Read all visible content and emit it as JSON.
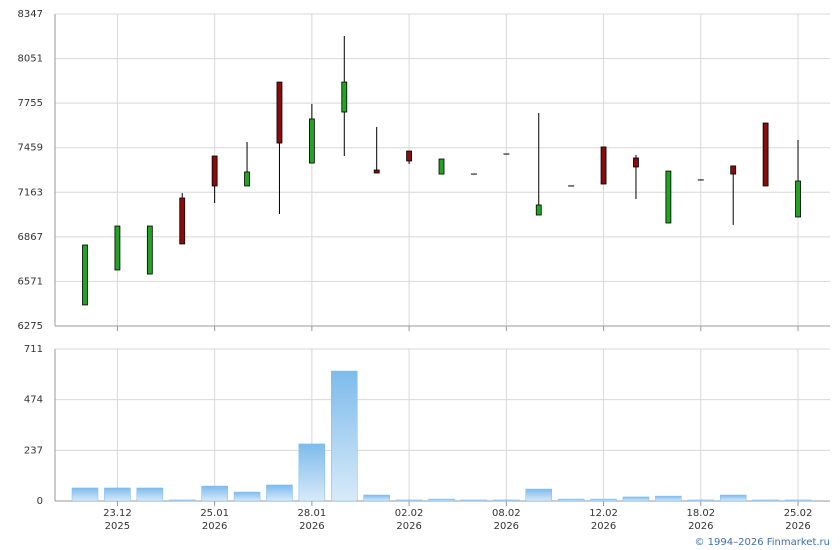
{
  "chart_data": [
    {
      "type": "candlestick",
      "open": [
        6415,
        6647,
        6620,
        7125,
        7404,
        7205,
        7895,
        7357,
        7696,
        7311,
        7437,
        7284,
        7284,
        7417,
        7012,
        7205,
        7464,
        7391,
        6959,
        7245,
        7338,
        7623,
        6999
      ],
      "high": [
        6813,
        6939,
        6939,
        7158,
        7404,
        7497,
        7895,
        7749,
        8201,
        7597,
        7437,
        7384,
        7284,
        7417,
        7690,
        7205,
        7464,
        7411,
        7304,
        7245,
        7338,
        7623,
        7510
      ],
      "low": [
        6415,
        6647,
        6620,
        6820,
        7092,
        7205,
        7019,
        7357,
        7404,
        7291,
        7351,
        7284,
        7284,
        7417,
        7012,
        7205,
        7218,
        7118,
        6959,
        7245,
        6946,
        7205,
        6999
      ],
      "close": [
        6813,
        6939,
        6939,
        6820,
        7205,
        7298,
        7490,
        7650,
        7895,
        7291,
        7371,
        7384,
        7284,
        7417,
        7079,
        7205,
        7218,
        7331,
        7304,
        7245,
        7284,
        7205,
        7238
      ],
      "up_color": "#22a422",
      "down_color": "#8b0a0a",
      "ylim": [
        6275,
        8347
      ],
      "yticks": [
        6275,
        6571,
        6867,
        7163,
        7459,
        7755,
        8051,
        8347
      ],
      "grid": true
    },
    {
      "type": "bar",
      "categories": [
        null,
        "23.12",
        null,
        null,
        "25.01",
        null,
        null,
        "28.01",
        null,
        null,
        "02.02",
        null,
        null,
        "08.02",
        null,
        null,
        "12.02",
        null,
        null,
        "18.02",
        null,
        null,
        "25.02"
      ],
      "category_years": [
        null,
        "2025",
        null,
        null,
        "2026",
        null,
        null,
        "2026",
        null,
        null,
        "2026",
        null,
        null,
        "2026",
        null,
        null,
        "2026",
        null,
        null,
        "2026",
        null,
        null,
        "2026"
      ],
      "values": [
        61,
        61,
        61,
        5,
        70,
        42,
        75,
        267,
        608,
        28,
        5,
        9,
        5,
        5,
        56,
        9,
        9,
        19,
        23,
        5,
        28,
        5,
        5
      ],
      "color": "#7dbbec",
      "ylim": [
        0,
        711
      ],
      "yticks": [
        0,
        237,
        474,
        711
      ],
      "grid": true
    }
  ],
  "credit": "© 1994–2026 Finmarket.ru"
}
